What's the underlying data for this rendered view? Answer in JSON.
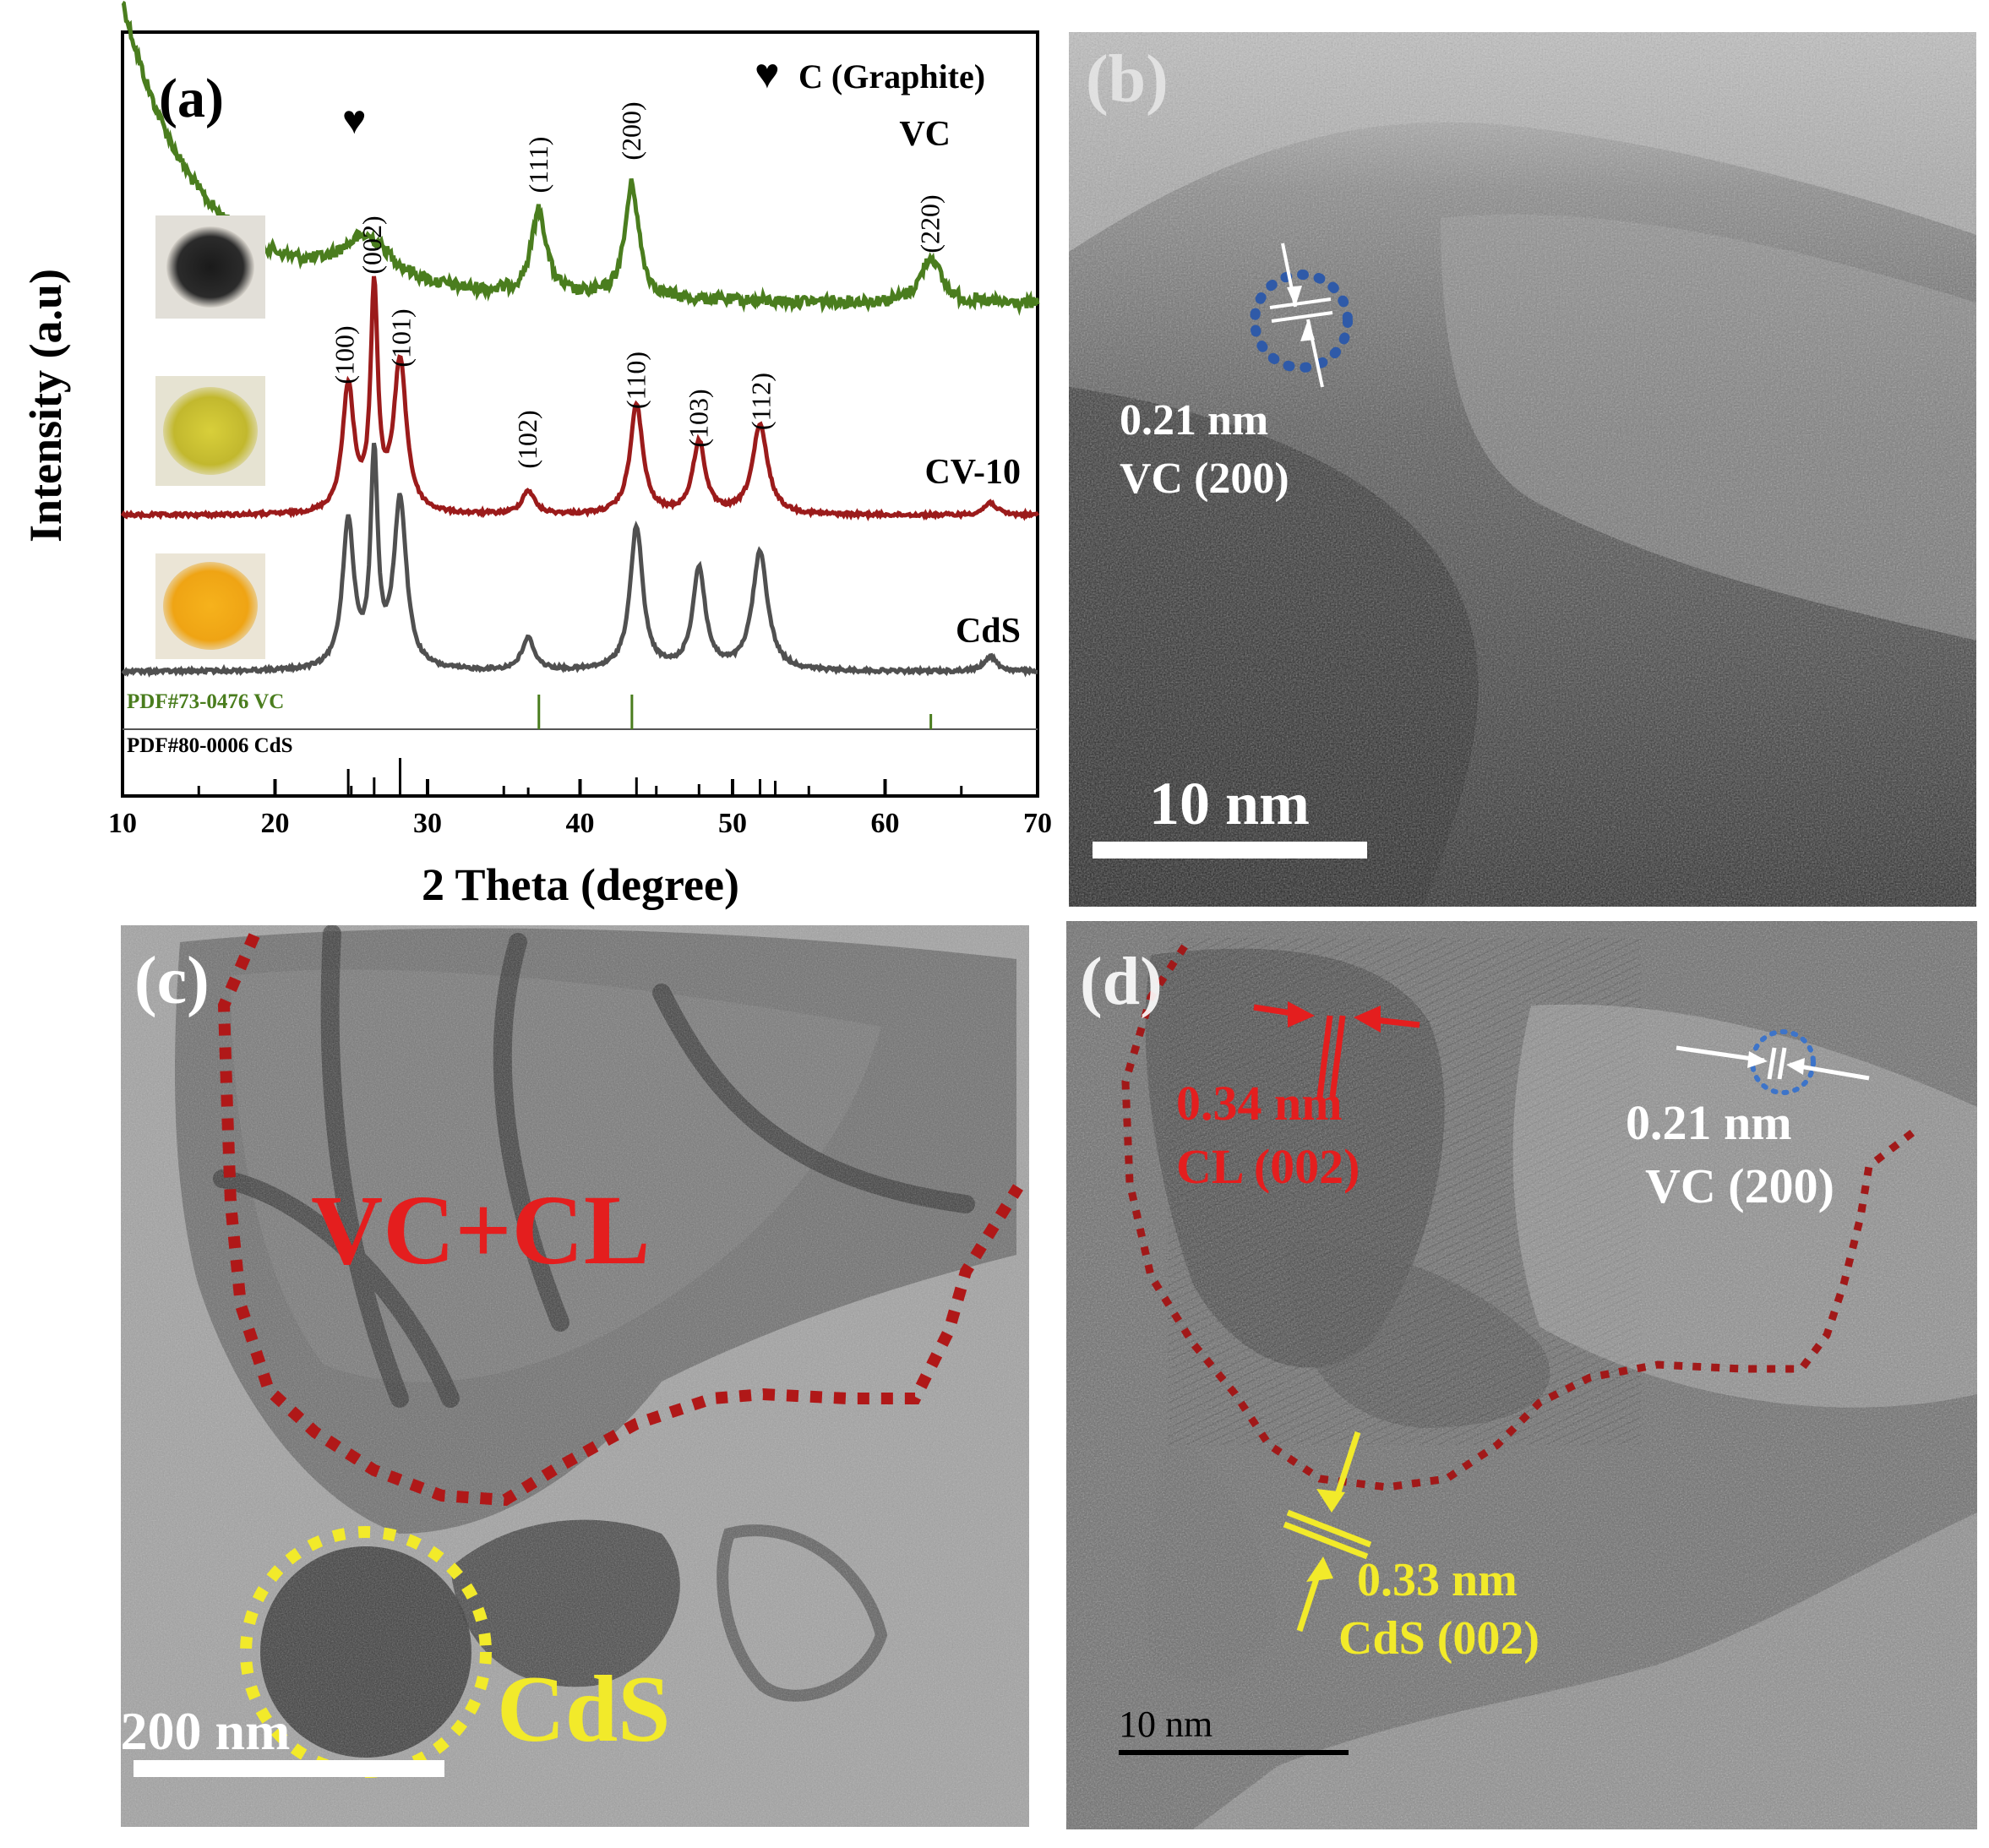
{
  "panel_a": {
    "label": "(a)",
    "legend": "C (Graphite)",
    "xlabel": "2 Theta (degree)",
    "ylabel": "Intensity (a.u)",
    "xticks": [
      "10",
      "20",
      "30",
      "40",
      "50",
      "60",
      "70"
    ],
    "series": [
      {
        "name": "VC",
        "color": "#4a7d1e"
      },
      {
        "name": "CV-10",
        "color": "#9b1b1b"
      },
      {
        "name": "CdS",
        "color": "#505050"
      }
    ],
    "vc_peaks": [
      "(111)",
      "(200)",
      "(220)"
    ],
    "cds_peaks": [
      "(100)",
      "(002)",
      "(101)",
      "(102)",
      "(110)",
      "(103)",
      "(112)"
    ],
    "pdf_vc": "PDF#73-0476 VC",
    "pdf_cds": "PDF#80-0006 CdS"
  },
  "chart_data": {
    "type": "line",
    "xlabel": "2 Theta (degree)",
    "ylabel": "Intensity (a.u)",
    "xlim": [
      10,
      70
    ],
    "series": [
      {
        "name": "VC",
        "peaks_2theta": [
          26.0,
          37.3,
          43.4,
          63.0
        ],
        "peak_labels": [
          "♥",
          "(111)",
          "(200)",
          "(220)"
        ]
      },
      {
        "name": "CV-10",
        "peaks_2theta": [
          24.8,
          26.5,
          28.2,
          36.6,
          43.7,
          47.8,
          51.8,
          66.9
        ],
        "peak_labels": [
          "(100)",
          "(002)",
          "(101)",
          "(102)",
          "(110)",
          "(103)",
          "(112)",
          ""
        ]
      },
      {
        "name": "CdS",
        "peaks_2theta": [
          24.8,
          26.5,
          28.2,
          36.6,
          43.7,
          47.8,
          51.8,
          66.9
        ]
      }
    ],
    "reference_vc": [
      37.3,
      43.4,
      63.0
    ],
    "reference_cds": [
      24.8,
      26.5,
      28.2,
      36.6,
      43.7,
      47.8,
      51.8,
      52.8
    ]
  },
  "panel_b": {
    "label": "(b)",
    "annotation_value": "0.21 nm",
    "annotation_plane": "VC (200)",
    "scale": "10 nm"
  },
  "panel_c": {
    "label": "(c)",
    "region_1": "VC+CL",
    "region_2": "CdS",
    "scale": "200 nm"
  },
  "panel_d": {
    "label": "(d)",
    "cl_value": "0.34 nm",
    "cl_plane": "CL (002)",
    "vc_value": "0.21 nm",
    "vc_plane": "VC (200)",
    "cds_value": "0.33 nm",
    "cds_plane": "CdS (002)",
    "scale": "10 nm"
  }
}
